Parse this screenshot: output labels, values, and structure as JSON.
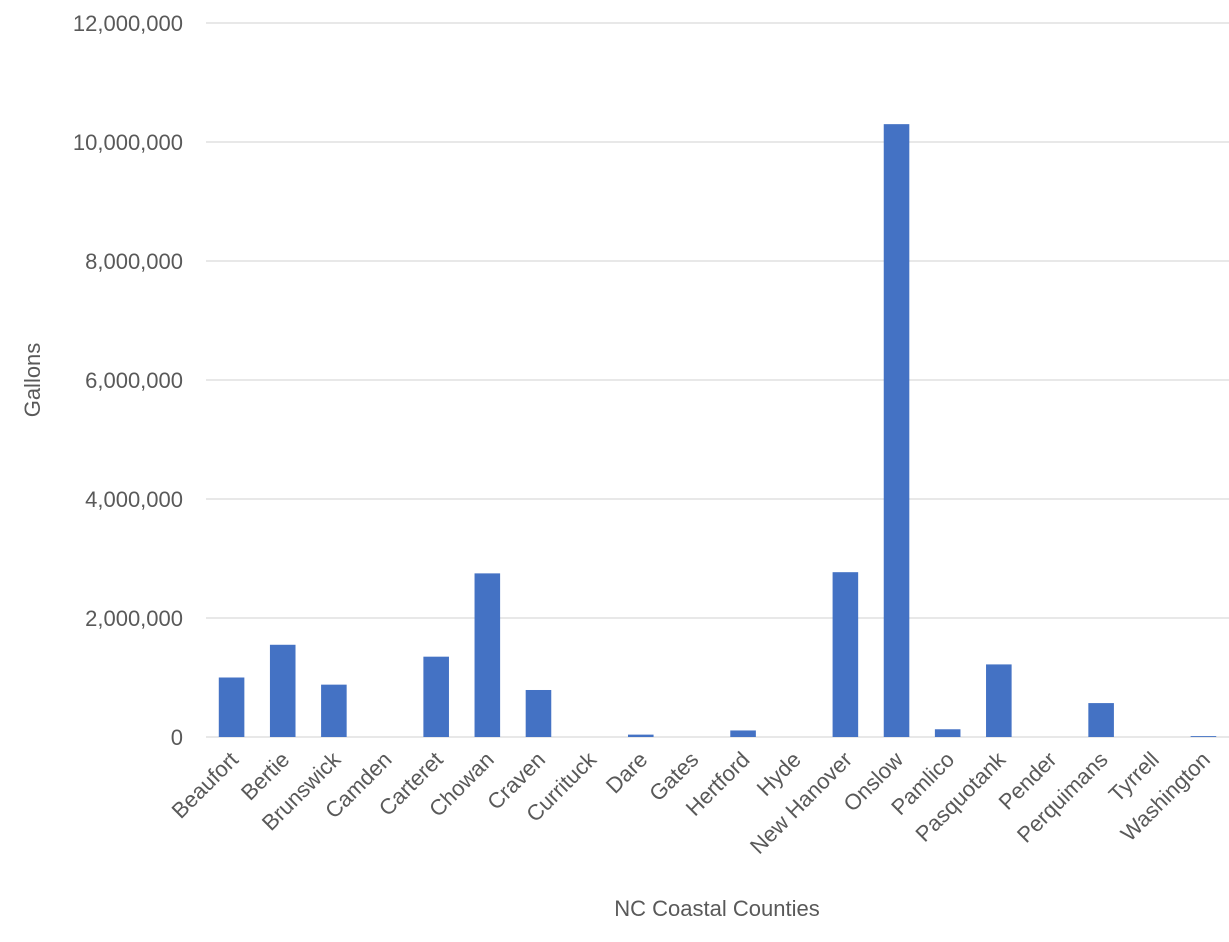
{
  "chart_data": {
    "type": "bar",
    "title": "",
    "xlabel": "NC Coastal Counties",
    "ylabel": "Gallons",
    "ylim": [
      0,
      12000000
    ],
    "yticks": [
      0,
      2000000,
      4000000,
      6000000,
      8000000,
      10000000,
      12000000
    ],
    "ytick_labels": [
      "0",
      "2,000,000",
      "4,000,000",
      "6,000,000",
      "8,000,000",
      "10,000,000",
      "12,000,000"
    ],
    "grid": true,
    "legend": "none",
    "bar_color": "#4472c4",
    "categories": [
      "Beaufort",
      "Bertie",
      "Brunswick",
      "Camden",
      "Carteret",
      "Chowan",
      "Craven",
      "Currituck",
      "Dare",
      "Gates",
      "Hertford",
      "Hyde",
      "New Hanover",
      "Onslow",
      "Pamlico",
      "Pasquotank",
      "Pender",
      "Perquimans",
      "Tyrrell",
      "Washington"
    ],
    "values": [
      1000000,
      1550000,
      880000,
      0,
      1350000,
      2750000,
      790000,
      0,
      40000,
      0,
      110000,
      0,
      2770000,
      10300000,
      130000,
      1220000,
      0,
      570000,
      0,
      15000
    ]
  }
}
